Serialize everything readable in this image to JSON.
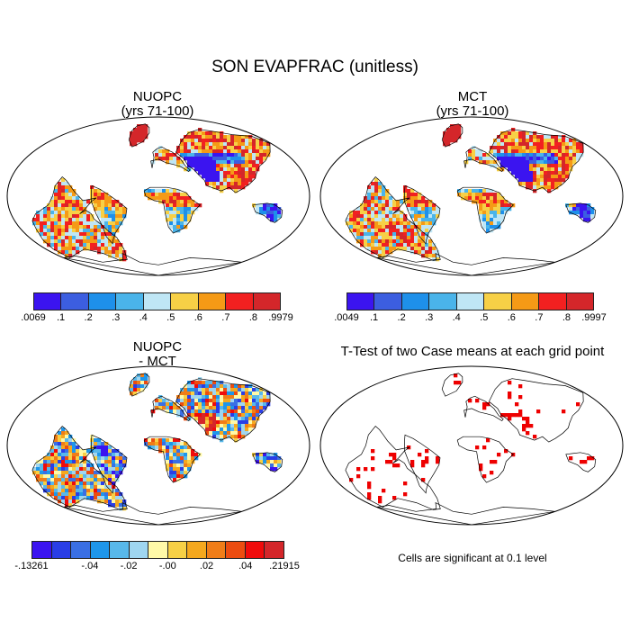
{
  "title": "SON EVAPFRAC (unitless)",
  "panels": {
    "nuopc": {
      "title_line1": "NUOPC",
      "title_line2": "(yrs 71-100)"
    },
    "mct": {
      "title_line1": "MCT",
      "title_line2": "(yrs 71-100)"
    },
    "diff": {
      "title_line1": "NUOPC",
      "title_line2": "- MCT"
    },
    "ttest": {
      "title": "T-Test of two Case means at each grid point",
      "note": "Cells are significant at 0.1 level"
    }
  },
  "colorbars": {
    "nuopc": {
      "colors": [
        "#3b14f0",
        "#3c5ee0",
        "#1e90ea",
        "#4ab4ea",
        "#bfe6f5",
        "#f7d046",
        "#f59a16",
        "#f22020",
        "#d4262a"
      ],
      "labels": [
        ".0069",
        ".1",
        ".2",
        ".3",
        ".4",
        ".5",
        ".6",
        ".7",
        ".8",
        ".9979"
      ]
    },
    "mct": {
      "colors": [
        "#3b14f0",
        "#3c5ee0",
        "#1e90ea",
        "#4ab4ea",
        "#bfe6f5",
        "#f7d046",
        "#f59a16",
        "#f22020",
        "#d4262a"
      ],
      "labels": [
        ".0049",
        ".1",
        ".2",
        ".3",
        ".4",
        ".5",
        ".6",
        ".7",
        ".8",
        ".9997"
      ]
    },
    "diff": {
      "colors": [
        "#3b14f0",
        "#2a3ee6",
        "#3a6fe4",
        "#1e96ea",
        "#58b8ea",
        "#9fd6f0",
        "#fff9a8",
        "#f7d046",
        "#f5a81e",
        "#f07d18",
        "#ec4c10",
        "#f00b0b",
        "#d4262a"
      ],
      "labels": [
        "-.13261",
        "-.04",
        "-.02",
        "-.00",
        ".02",
        ".04",
        ".21915"
      ]
    }
  },
  "colors": {
    "significant": "#ee0000",
    "coast": "#000000"
  }
}
